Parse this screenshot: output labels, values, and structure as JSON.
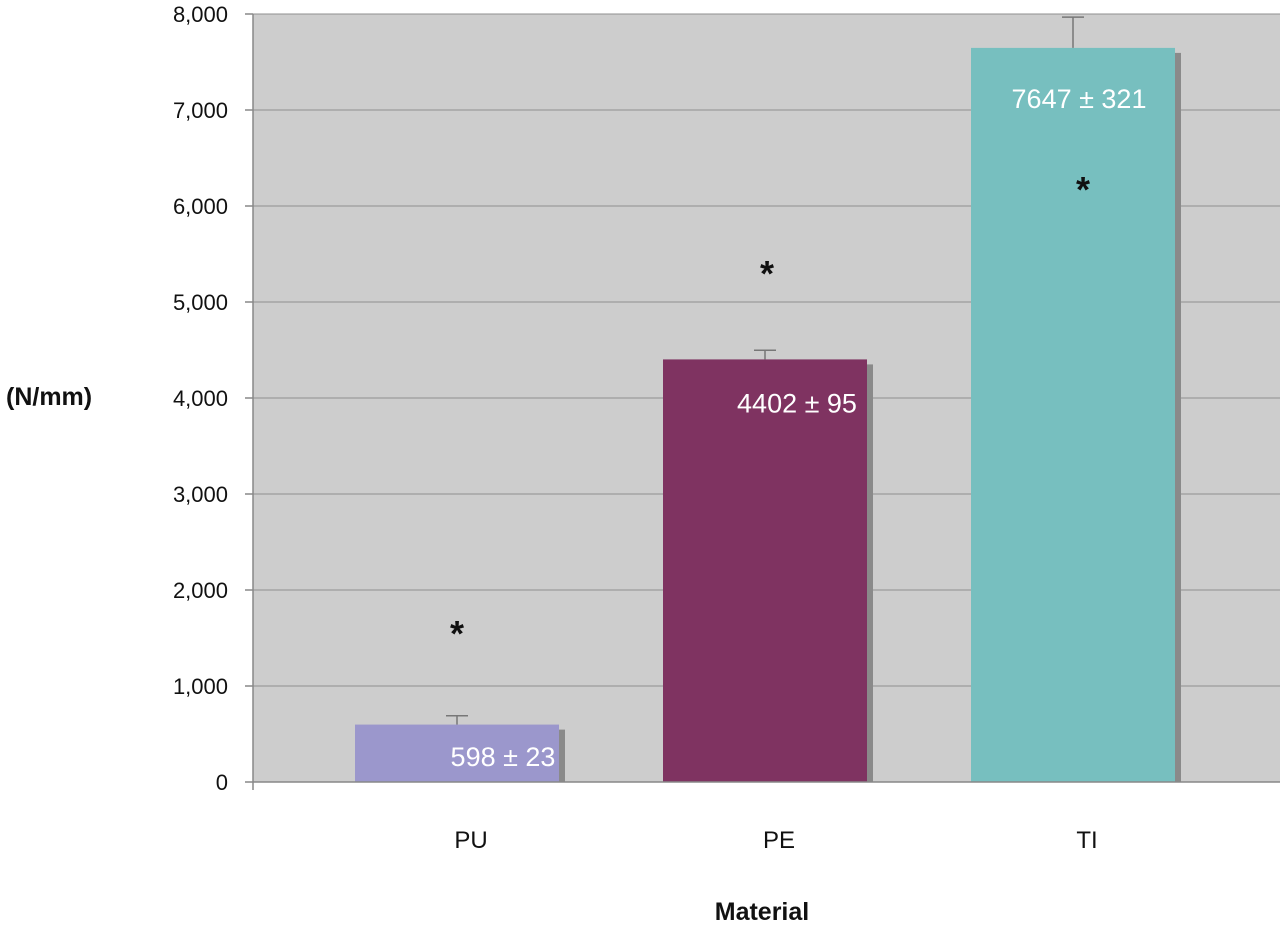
{
  "chart_data": {
    "type": "bar",
    "xlabel": "Material",
    "ylabel": "(N/mm)",
    "categories": [
      "PU",
      "PE",
      "TI"
    ],
    "values": [
      598,
      4402,
      7647
    ],
    "errors": [
      23,
      95,
      321
    ],
    "data_labels": [
      "598 ± 23",
      "4402 ± 95",
      "7647 ± 321"
    ],
    "significance_markers": [
      "*",
      "*",
      "*"
    ],
    "colors": [
      "#9b97cc",
      "#7f3361",
      "#77bfbf"
    ],
    "ylim": [
      0,
      8000
    ],
    "yticks": [
      0,
      1000,
      2000,
      3000,
      4000,
      5000,
      6000,
      7000,
      8000
    ],
    "ytick_labels": [
      "0",
      "1,000",
      "2,000",
      "3,000",
      "4,000",
      "5,000",
      "6,000",
      "7,000",
      "8,000"
    ],
    "grid": true,
    "plot_background": "#cdcdcd",
    "legend": "none"
  }
}
